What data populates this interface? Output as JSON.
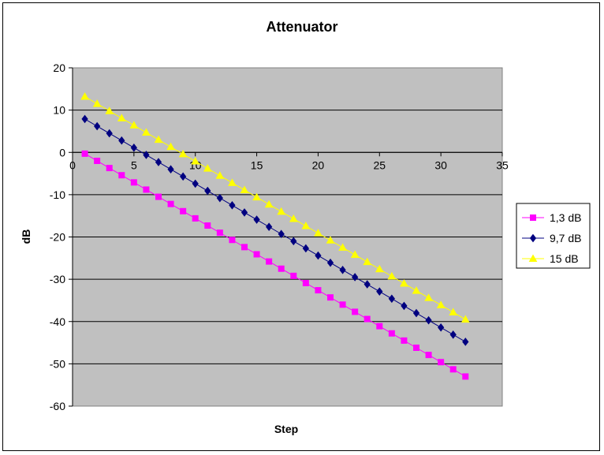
{
  "chart_data": {
    "type": "line",
    "title": "Attenuator",
    "xlabel": "Step",
    "ylabel": "dB",
    "xlim": [
      0,
      35
    ],
    "ylim": [
      -60,
      20
    ],
    "xticks": [
      0,
      5,
      10,
      15,
      20,
      25,
      30,
      35
    ],
    "yticks": [
      20,
      10,
      0,
      -10,
      -20,
      -30,
      -40,
      -50,
      -60
    ],
    "grid": "horizontal",
    "legend_position": "right",
    "x": [
      1,
      2,
      3,
      4,
      5,
      6,
      7,
      8,
      9,
      10,
      11,
      12,
      13,
      14,
      15,
      16,
      17,
      18,
      19,
      20,
      21,
      22,
      23,
      24,
      25,
      26,
      27,
      28,
      29,
      30,
      31,
      32
    ],
    "series": [
      {
        "name": "1,3 dB",
        "color": "#ff00ff",
        "marker": "square",
        "values": [
          -0.3,
          -2.0,
          -3.7,
          -5.4,
          -7.1,
          -8.8,
          -10.5,
          -12.2,
          -13.9,
          -15.6,
          -17.3,
          -19.0,
          -20.7,
          -22.4,
          -24.1,
          -25.8,
          -27.5,
          -29.2,
          -30.9,
          -32.6,
          -34.3,
          -36.0,
          -37.7,
          -39.4,
          -41.1,
          -42.8,
          -44.5,
          -46.2,
          -47.9,
          -49.6,
          -51.3,
          -53.0
        ]
      },
      {
        "name": "9,7 dB",
        "color": "#000080",
        "marker": "diamond",
        "values": [
          7.9,
          6.2,
          4.5,
          2.8,
          1.1,
          -0.6,
          -2.3,
          -4.0,
          -5.7,
          -7.4,
          -9.1,
          -10.8,
          -12.5,
          -14.2,
          -15.9,
          -17.6,
          -19.3,
          -21.0,
          -22.7,
          -24.4,
          -26.1,
          -27.8,
          -29.5,
          -31.2,
          -32.9,
          -34.6,
          -36.3,
          -38.0,
          -39.7,
          -41.4,
          -43.1,
          -44.8
        ]
      },
      {
        "name": "15 dB",
        "color": "#ffff00",
        "marker": "triangle",
        "values": [
          13.2,
          11.5,
          9.8,
          8.1,
          6.4,
          4.7,
          3.0,
          1.3,
          -0.4,
          -2.1,
          -3.8,
          -5.5,
          -7.2,
          -8.9,
          -10.6,
          -12.3,
          -14.0,
          -15.7,
          -17.4,
          -19.1,
          -20.8,
          -22.5,
          -24.2,
          -25.9,
          -27.6,
          -29.3,
          -31.0,
          -32.7,
          -34.4,
          -36.1,
          -37.8,
          -39.5
        ]
      }
    ]
  }
}
